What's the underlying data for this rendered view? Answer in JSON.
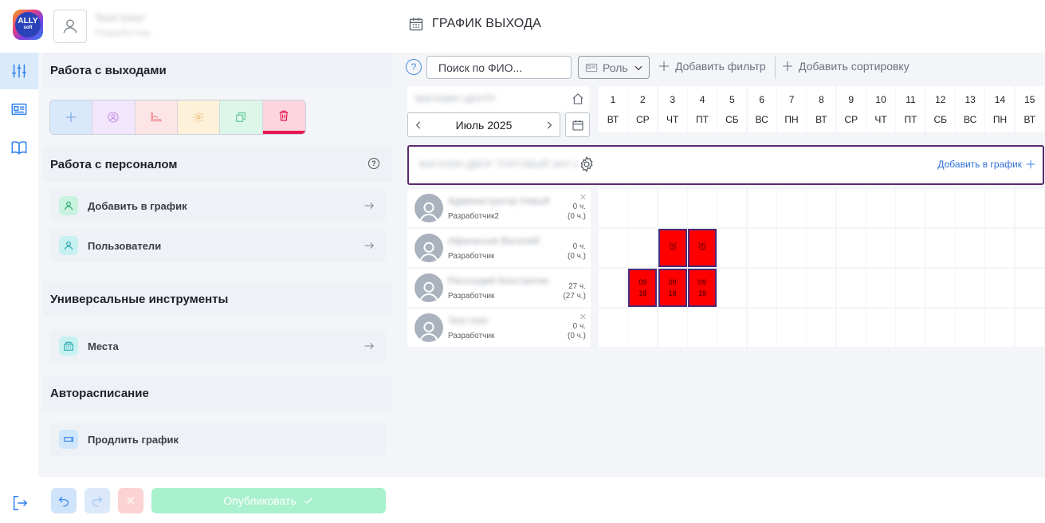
{
  "header": {
    "user_name": "Test User",
    "user_role": "Разработчик",
    "page_title": "ГРАФИК ВЫХОДА",
    "logo_text": "ALLY",
    "logo_sub": "soft"
  },
  "panel": {
    "section_exits": "Работа с выходами",
    "section_staff": "Работа с персоналом",
    "staff_help": "?",
    "staff_items": [
      {
        "label": "Добавить в график"
      },
      {
        "label": "Пользователи"
      }
    ],
    "section_tools": "Универсальные инструменты",
    "tools_items": [
      {
        "label": "Места"
      }
    ],
    "section_auto": "Авторасписание",
    "auto_items": [
      {
        "label": "Продлить график"
      }
    ],
    "publish_label": "Опубликовать"
  },
  "filters": {
    "help": "?",
    "search_placeholder": "Поиск по ФИО...",
    "role_label": "Роль",
    "add_filter": "Добавить фильтр",
    "add_sort": "Добавить сортировку"
  },
  "schedule": {
    "org_name": "МАГАЗИН ЦЕНТР",
    "month": "Июль 2025",
    "days": [
      {
        "num": "1",
        "dow": "ВТ"
      },
      {
        "num": "2",
        "dow": "СР"
      },
      {
        "num": "3",
        "dow": "ЧТ"
      },
      {
        "num": "4",
        "dow": "ПТ"
      },
      {
        "num": "5",
        "dow": "СБ"
      },
      {
        "num": "6",
        "dow": "ВС"
      },
      {
        "num": "7",
        "dow": "ПН"
      },
      {
        "num": "8",
        "dow": "ВТ"
      },
      {
        "num": "9",
        "dow": "СР"
      },
      {
        "num": "10",
        "dow": "ЧТ"
      },
      {
        "num": "11",
        "dow": "ПТ"
      },
      {
        "num": "12",
        "dow": "СБ"
      },
      {
        "num": "13",
        "dow": "ВС"
      },
      {
        "num": "14",
        "dow": "ПН"
      },
      {
        "num": "15",
        "dow": "ВТ"
      }
    ],
    "group_name": "МАГАЗИН ДВОР ТОРГОВЫЙ ЗАЛ 1",
    "group_add": "Добавить в график",
    "employees": [
      {
        "name": "Администратор Новый",
        "role": "Разработчик2",
        "hours": "0 ч.",
        "hours_sub": "(0 ч.)",
        "removable": true,
        "shifts": []
      },
      {
        "name": "Афанасьев Василий",
        "role": "Разработчик",
        "hours": "0 ч.",
        "hours_sub": "(0 ч.)",
        "removable": false,
        "shifts": [
          {
            "day": 3,
            "top": "",
            "bottom": ""
          },
          {
            "day": 4,
            "top": "",
            "bottom": ""
          }
        ]
      },
      {
        "name": "Рассохдий Константин",
        "role": "Разработчик",
        "hours": "27 ч.",
        "hours_sub": "(27 ч.)",
        "removable": false,
        "shifts": [
          {
            "day": 2,
            "top": "09",
            "bottom": "18"
          },
          {
            "day": 3,
            "top": "09",
            "bottom": "18"
          },
          {
            "day": 4,
            "top": "09",
            "bottom": "18"
          }
        ]
      },
      {
        "name": "Test User",
        "role": "Разработчик",
        "hours": "0 ч.",
        "hours_sub": "(0 ч.)",
        "removable": true,
        "shifts": []
      }
    ]
  },
  "colors": {
    "accent": "#2f80ed",
    "shift_fill": "#ff0000",
    "shift_border": "#4b2a78",
    "group_border": "#5b2a6e",
    "publish": "#a9f0cf",
    "delete": "#e8174f"
  },
  "icons": {
    "rail": [
      "sliders-icon",
      "id-card-icon",
      "book-icon"
    ],
    "toolbar": [
      "plus-icon",
      "users-icon",
      "shoe-icon",
      "gear-icon",
      "copy-icon",
      "trash-icon"
    ]
  }
}
